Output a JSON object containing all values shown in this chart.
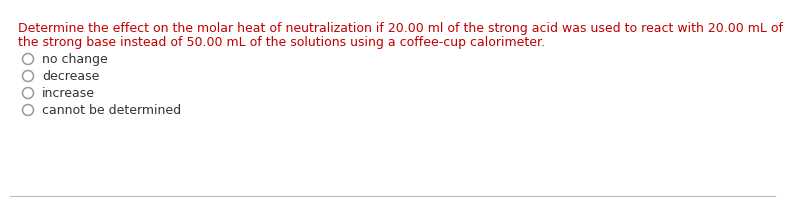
{
  "question_line1": "Determine the effect on the molar heat of neutralization if 20.00 ml of the strong acid was used to react with 20.00 mL of",
  "question_line2": "the strong base instead of 50.00 mL of the solutions using a coffee-cup calorimeter.",
  "question_color": "#c00000",
  "choices": [
    "no change",
    "decrease",
    "increase",
    "cannot be determined"
  ],
  "choice_color": "#333333",
  "bg_color": "#ffffff",
  "line_color": "#bbbbbb",
  "fig_width": 7.65,
  "fig_height": 2.04,
  "font_size": 9.0
}
